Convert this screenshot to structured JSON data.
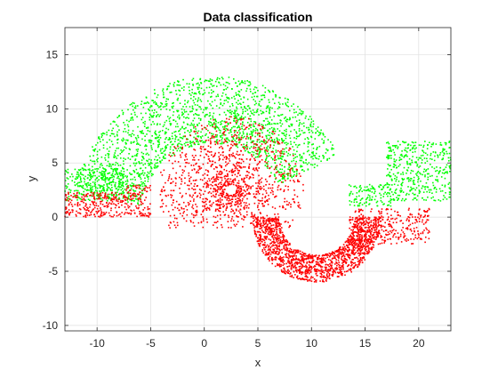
{
  "window": {
    "title": "Data classification"
  },
  "colors": {
    "figure_bg": "#ffffff",
    "axes_bg": "#ffffff",
    "axis_line": "#262626",
    "grid": "#dfdfdf",
    "green_class": "#00ff00",
    "red_class": "#ff0000"
  },
  "chart_data": {
    "type": "scatter",
    "title": "Data classification",
    "xlabel": "x",
    "ylabel": "y",
    "xlim": [
      -13,
      23
    ],
    "ylim": [
      -10.5,
      17.5
    ],
    "xticks": [
      -10,
      -5,
      0,
      5,
      10,
      15,
      20
    ],
    "yticks": [
      -10,
      -5,
      0,
      5,
      10,
      15
    ],
    "xtick_labels": [
      "-10",
      "-5",
      "0",
      "5",
      "10",
      "15",
      "20"
    ],
    "ytick_labels": [
      "-10",
      "-5",
      "0",
      "5",
      "10",
      "15"
    ],
    "grid": true,
    "box": true,
    "legend": "none",
    "marker_size": 1.6,
    "series": [
      {
        "color": "#00ff00",
        "regions": [
          {
            "shape": "arc",
            "cx": 0.8,
            "cy": 0,
            "r_inner": 6.8,
            "r_outer": 13,
            "theta_min": 0.45,
            "theta_max": 2.98,
            "count": 1900
          },
          {
            "shape": "rect",
            "x": [
              -13,
              -7.5
            ],
            "y": [
              1.5,
              4.5
            ],
            "count": 260
          },
          {
            "shape": "rect",
            "x": [
              17,
              23
            ],
            "y": [
              1.5,
              7
            ],
            "count": 420
          },
          {
            "shape": "rect",
            "x": [
              13.5,
              17.5
            ],
            "y": [
              1,
              3
            ],
            "count": 120
          }
        ]
      },
      {
        "color": "#ff0000",
        "regions": [
          {
            "shape": "rect",
            "x": [
              -13,
              -7.5
            ],
            "y": [
              0,
              2.3
            ],
            "count": 240
          },
          {
            "shape": "ring",
            "cx": 2.5,
            "cy": 2.5,
            "r_inner": 0.5,
            "r_outer": 6.8,
            "y_min": -1,
            "count": 1200
          },
          {
            "shape": "arc",
            "cx": 10.5,
            "cy": 0,
            "r_inner": 3.5,
            "r_outer": 6,
            "theta_min": 3.14,
            "theta_max": 6.28,
            "count": 1500
          },
          {
            "shape": "rect",
            "x": [
              13.5,
              21
            ],
            "y": [
              -2.5,
              0.8
            ],
            "count": 320
          },
          {
            "shape": "rect",
            "x": [
              -7.5,
              -5
            ],
            "y": [
              0,
              3
            ],
            "count": 120
          }
        ]
      }
    ]
  }
}
